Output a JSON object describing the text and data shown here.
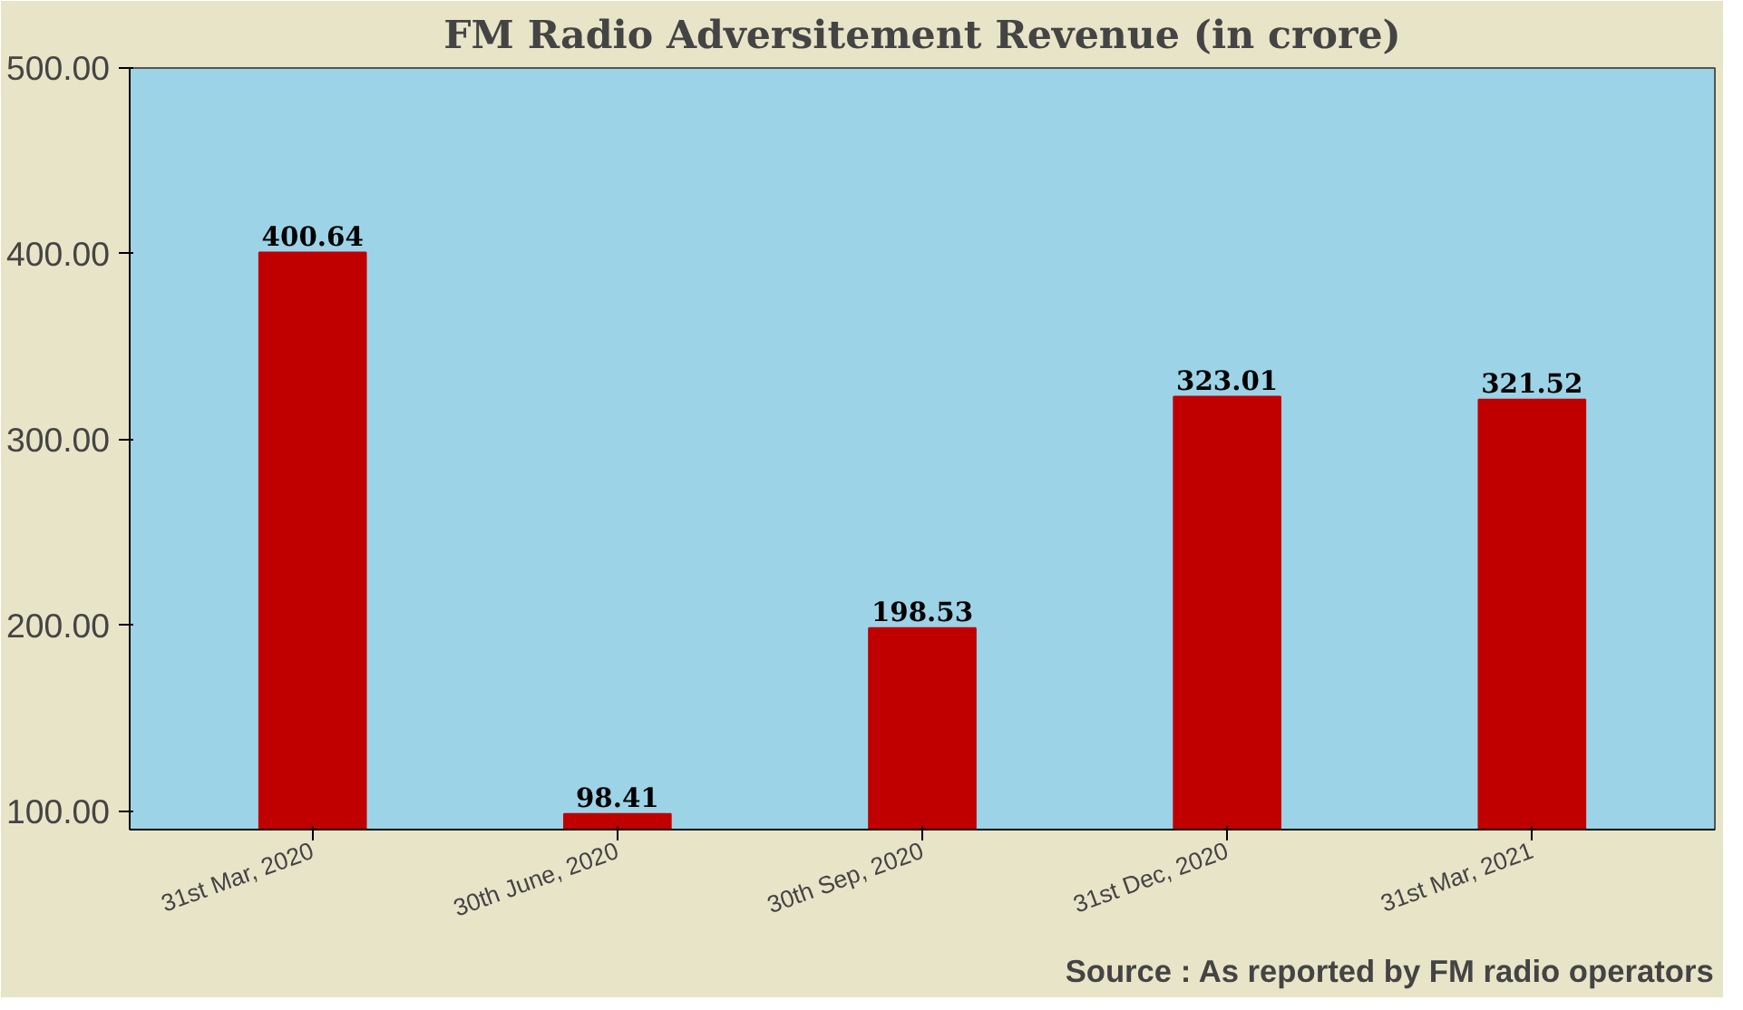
{
  "chart_data": {
    "type": "bar",
    "title": "FM Radio Adversitement Revenue (in crore)",
    "categories": [
      "31st Mar, 2020",
      "30th June, 2020",
      "30th Sep, 2020",
      "31st Dec, 2020",
      "31st Mar, 2021"
    ],
    "values": [
      400.64,
      98.41,
      198.53,
      323.01,
      321.52
    ],
    "color": "#c00000",
    "ylim": [
      90,
      500
    ],
    "yticks": [
      {
        "value": 100,
        "label": "100.00"
      },
      {
        "value": 200,
        "label": "200.00"
      },
      {
        "value": 300,
        "label": "300.00"
      },
      {
        "value": 400,
        "label": "400.00"
      },
      {
        "value": 500,
        "label": "500.00"
      }
    ],
    "data_labels": true,
    "grid": false,
    "annotations": [
      "Source : As reported by FM radio operators"
    ]
  }
}
